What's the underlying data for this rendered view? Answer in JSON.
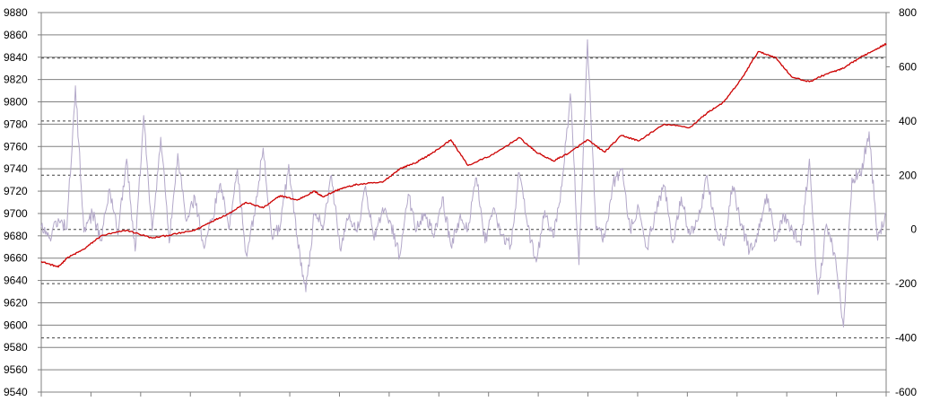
{
  "chart_data": {
    "type": "line",
    "title": "",
    "xlabel": "",
    "ylabel": "",
    "grid": true,
    "legend": "none",
    "y_left": {
      "min": 9540,
      "max": 9880,
      "step": 20,
      "ticks": [
        "9880",
        "9860",
        "9840",
        "9820",
        "9800",
        "9780",
        "9760",
        "9740",
        "9720",
        "9700",
        "9680",
        "9660",
        "9640",
        "9620",
        "9600",
        "9580",
        "9560",
        "9540"
      ]
    },
    "y_right": {
      "min": -600,
      "max": 800,
      "step": 200,
      "ticks": [
        "800",
        "600",
        "400",
        "200",
        "0",
        "-200",
        "-400",
        "-600"
      ],
      "dashed_reference_lines": [
        632,
        400,
        200,
        0,
        -200,
        -400
      ]
    },
    "series": [
      {
        "axis": "left",
        "color": "#cc0000",
        "x": [
          0,
          2,
          3,
          5,
          7,
          10,
          13,
          16,
          18,
          20,
          22,
          24,
          26,
          28,
          30,
          32,
          33,
          35,
          37,
          40,
          42,
          44,
          46,
          48,
          50,
          53,
          56,
          58,
          60,
          62,
          64,
          66,
          68,
          70,
          73,
          76,
          78,
          80,
          82,
          84,
          86,
          88,
          90,
          92,
          94,
          96,
          98,
          99
        ],
        "values": [
          9657,
          9652,
          9660,
          9668,
          9680,
          9685,
          9678,
          9682,
          9685,
          9693,
          9700,
          9710,
          9705,
          9716,
          9712,
          9720,
          9715,
          9722,
          9726,
          9728,
          9740,
          9746,
          9755,
          9766,
          9743,
          9753,
          9768,
          9755,
          9747,
          9755,
          9766,
          9755,
          9770,
          9765,
          9780,
          9777,
          9790,
          9800,
          9820,
          9845,
          9840,
          9822,
          9818,
          9825,
          9830,
          9840,
          9848,
          9852
        ]
      },
      {
        "axis": "right",
        "color": "#b3a8c9",
        "x": [
          0,
          1,
          2,
          3,
          4,
          5,
          6,
          7,
          8,
          9,
          10,
          11,
          12,
          13,
          14,
          15,
          16,
          17,
          18,
          19,
          20,
          21,
          22,
          23,
          24,
          25,
          26,
          27,
          28,
          29,
          30,
          31,
          32,
          33,
          34,
          35,
          36,
          37,
          38,
          39,
          40,
          41,
          42,
          43,
          44,
          45,
          46,
          47,
          48,
          49,
          50,
          51,
          52,
          53,
          54,
          55,
          56,
          57,
          58,
          59,
          60,
          61,
          62,
          63,
          64,
          65,
          66,
          67,
          68,
          69,
          70,
          71,
          72,
          73,
          74,
          75,
          76,
          77,
          78,
          79,
          80,
          81,
          82,
          83,
          84,
          85,
          86,
          87,
          88,
          89,
          90,
          91,
          92,
          93,
          94,
          95,
          96,
          97,
          98,
          99
        ],
        "values": [
          10,
          -30,
          40,
          0,
          530,
          -10,
          60,
          -40,
          150,
          -20,
          260,
          -80,
          420,
          -5,
          340,
          -50,
          280,
          30,
          120,
          -60,
          40,
          170,
          0,
          220,
          -90,
          50,
          300,
          -20,
          10,
          240,
          -30,
          -230,
          60,
          0,
          200,
          -70,
          40,
          -10,
          160,
          -40,
          80,
          20,
          -100,
          130,
          0,
          60,
          -30,
          120,
          -60,
          40,
          0,
          190,
          -50,
          80,
          -20,
          -60,
          210,
          10,
          -120,
          70,
          -30,
          160,
          500,
          -130,
          700,
          0,
          -30,
          170,
          220,
          0,
          80,
          -70,
          60,
          160,
          -50,
          120,
          -20,
          40,
          200,
          0,
          -60,
          160,
          20,
          -80,
          -20,
          130,
          -40,
          50,
          0,
          -60,
          260,
          -240,
          20,
          -90,
          -360,
          190,
          200,
          360,
          -40,
          60
        ]
      }
    ]
  }
}
